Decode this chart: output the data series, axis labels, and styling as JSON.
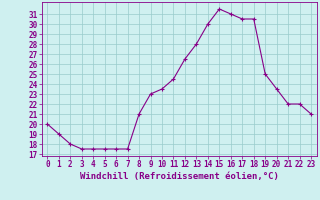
{
  "x": [
    0,
    1,
    2,
    3,
    4,
    5,
    6,
    7,
    8,
    9,
    10,
    11,
    12,
    13,
    14,
    15,
    16,
    17,
    18,
    19,
    20,
    21,
    22,
    23
  ],
  "y": [
    20,
    19,
    18,
    17.5,
    17.5,
    17.5,
    17.5,
    17.5,
    21,
    23,
    23.5,
    24.5,
    26.5,
    28,
    30,
    31.5,
    31,
    30.5,
    30.5,
    25,
    23.5,
    22,
    22,
    21
  ],
  "xlim": [
    -0.5,
    23.5
  ],
  "ymin": 17,
  "ymax": 32,
  "yticks": [
    17,
    18,
    19,
    20,
    21,
    22,
    23,
    24,
    25,
    26,
    27,
    28,
    29,
    30,
    31
  ],
  "xticks": [
    0,
    1,
    2,
    3,
    4,
    5,
    6,
    7,
    8,
    9,
    10,
    11,
    12,
    13,
    14,
    15,
    16,
    17,
    18,
    19,
    20,
    21,
    22,
    23
  ],
  "line_color": "#880088",
  "marker": "+",
  "bg_color": "#cff0f0",
  "grid_color": "#99cccc",
  "xlabel": "Windchill (Refroidissement éolien,°C)",
  "xlabel_color": "#880088",
  "tick_color": "#880088",
  "axis_color": "#880088",
  "tick_fontsize": 5.5,
  "xlabel_fontsize": 6.5,
  "marker_size": 3,
  "line_width": 0.8
}
